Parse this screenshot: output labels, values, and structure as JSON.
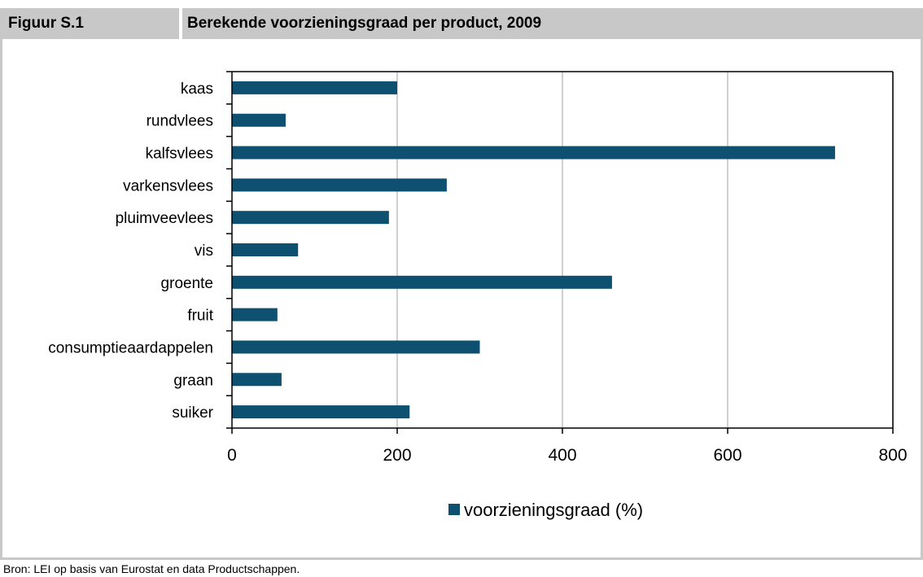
{
  "figure": {
    "number": "Figuur S.1",
    "title": "Berekende voorzieningsgraad per product, 2009"
  },
  "source": "Bron: LEI op basis van Eurostat en data Productschappen.",
  "colors": {
    "bar": "#0d5070",
    "header": "#c8c8c8",
    "grid": "#c0c0c0"
  },
  "chart_data": {
    "type": "bar",
    "orientation": "horizontal",
    "categories": [
      "kaas",
      "rundvlees",
      "kalfsvlees",
      "varkensvlees",
      "pluimveevlees",
      "vis",
      "groente",
      "fruit",
      "consumptieaardappelen",
      "graan",
      "suiker"
    ],
    "series": [
      {
        "name": "voorzieningsgraad (%)",
        "values": [
          200,
          65,
          730,
          260,
          190,
          80,
          460,
          55,
          300,
          60,
          215
        ]
      }
    ],
    "xlim": [
      0,
      800
    ],
    "xticks": [
      0,
      200,
      400,
      600,
      800
    ],
    "grid": true,
    "legend": "bottom"
  }
}
